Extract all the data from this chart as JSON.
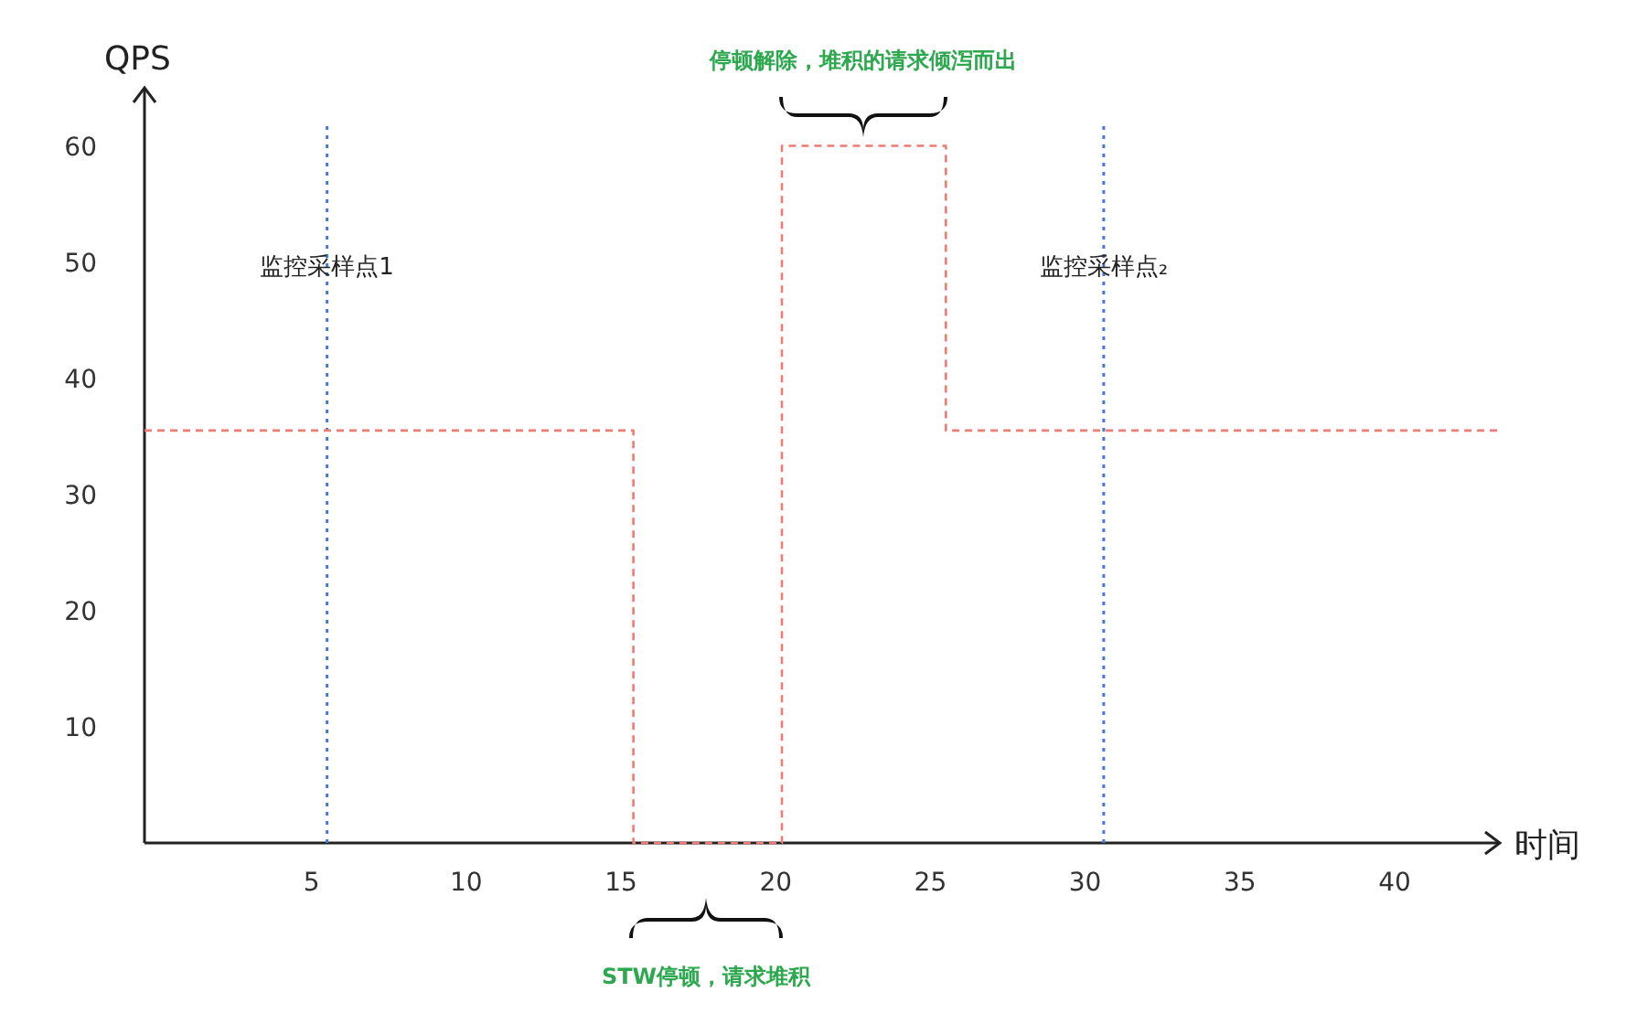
{
  "chart_data": {
    "type": "step",
    "xlabel": "时间",
    "ylabel": "QPS",
    "xlim": [
      -0.4,
      43.4
    ],
    "ylim": [
      0,
      65
    ],
    "xticks": [
      5,
      10,
      15,
      20,
      25,
      30,
      35,
      40
    ],
    "yticks": [
      10,
      20,
      30,
      40,
      50,
      60
    ],
    "grid": false,
    "series": [
      {
        "color": "#ee7b74",
        "line_style": "dashed",
        "x": [
          -0.4,
          15.4,
          20.2,
          25.5,
          43.4
        ],
        "values": [
          35.5,
          0,
          60,
          35.5,
          35.5
        ]
      }
    ],
    "ref_lines": [
      {
        "axis": "x",
        "value": 5.5,
        "label": "监控采样点1",
        "color": "#4a78d6",
        "line_style": "dotted"
      },
      {
        "axis": "x",
        "value": 30.6,
        "label": "监控采样点₂",
        "color": "#4a78d6",
        "line_style": "dotted"
      }
    ],
    "annotations": [
      "停顿解除，堆积的请求倾泻而出",
      "STW停顿，请求堆积"
    ]
  }
}
